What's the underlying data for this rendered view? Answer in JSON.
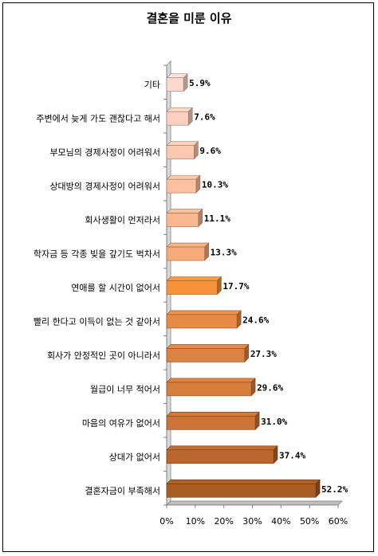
{
  "chart_data": {
    "type": "bar",
    "orientation": "horizontal",
    "title": "결혼을 미룬 이유",
    "categories": [
      "기타",
      "주변에서 늦게 가도 괜찮다고 해서",
      "부모님의 경제사정이 어려워서",
      "상대방의 경제사정이 어려워서",
      "회사생활이 먼저라서",
      "학자금 등 각종 빚을 갚기도 벅차서",
      "연애를 할 시간이 없어서",
      "빨리 한다고 이득이 없는 것 같아서",
      "회사가 안정적인 곳이 아니라서",
      "월급이 너무 적어서",
      "마음의 여유가 없어서",
      "상대가 없어서",
      "결혼자금이 부족해서"
    ],
    "values": [
      5.9,
      7.6,
      9.6,
      10.3,
      11.1,
      13.3,
      17.7,
      24.6,
      27.3,
      29.6,
      31.0,
      37.4,
      52.2
    ],
    "value_labels": [
      "5.9%",
      "7.6%",
      "9.6%",
      "10.3%",
      "11.1%",
      "13.3%",
      "17.7%",
      "24.6%",
      "27.3%",
      "29.6%",
      "31.0%",
      "37.4%",
      "52.2%"
    ],
    "bar_colors": [
      "#fcd9cc",
      "#fbd0be",
      "#fbc9b0",
      "#fbc1a0",
      "#fab891",
      "#f9aa78",
      "#f7923a",
      "#e68a45",
      "#dc8242",
      "#d67c3c",
      "#cc7335",
      "#bb662c",
      "#a95c22"
    ],
    "xlim": [
      0,
      60
    ],
    "xticks": [
      "0%",
      "10%",
      "20%",
      "30%",
      "40%",
      "50%",
      "60%"
    ],
    "xlabel": "",
    "ylabel": "",
    "grid": false,
    "legend": "none"
  }
}
